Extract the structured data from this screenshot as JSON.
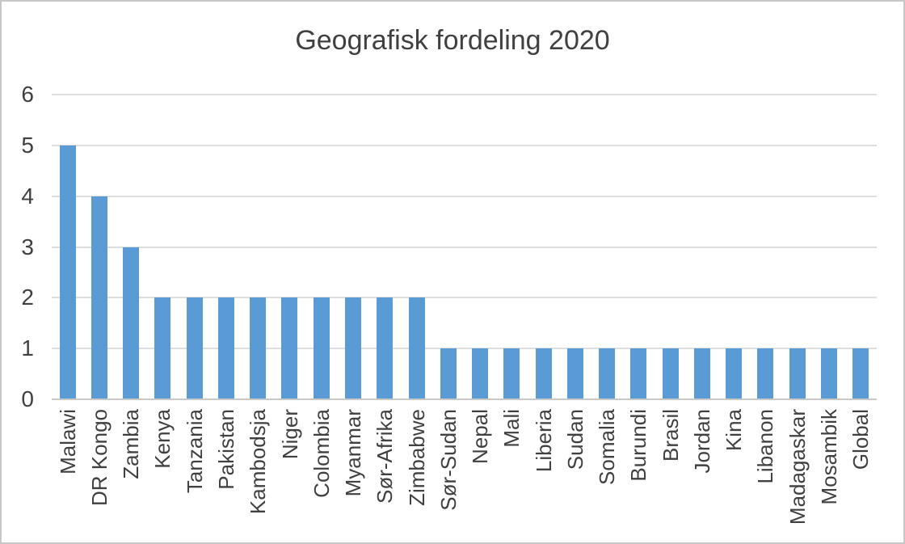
{
  "figure": {
    "background": "#ffffff",
    "border_color": "#c7c7c7"
  },
  "chart_data": {
    "type": "bar",
    "title": "Geografisk fordeling 2020",
    "categories": [
      "Malawi",
      "DR Kongo",
      "Zambia",
      "Kenya",
      "Tanzania",
      "Pakistan",
      "Kambodsja",
      "Niger",
      "Colombia",
      "Myanmar",
      "Sør-Afrika",
      "Zimbabwe",
      "Sør-Sudan",
      "Nepal",
      "Mali",
      "Liberia",
      "Sudan",
      "Somalia",
      "Burundi",
      "Brasil",
      "Jordan",
      "Kina",
      "Libanon",
      "Madagaskar",
      "Mosambik",
      "Global"
    ],
    "values": [
      5,
      4,
      3,
      2,
      2,
      2,
      2,
      2,
      2,
      2,
      2,
      2,
      1,
      1,
      1,
      1,
      1,
      1,
      1,
      1,
      1,
      1,
      1,
      1,
      1,
      1
    ],
    "xlabel": "",
    "ylabel": "",
    "ylim": [
      0,
      6
    ],
    "yticks": [
      0,
      1,
      2,
      3,
      4,
      5,
      6
    ],
    "grid": true,
    "legend": false,
    "x_tick_rotation_deg": 90,
    "bar_color": "#5b9bd5",
    "gridline_color": "#dedede",
    "axis_line_color": "#c9c9c9",
    "text_color": "#404040"
  }
}
